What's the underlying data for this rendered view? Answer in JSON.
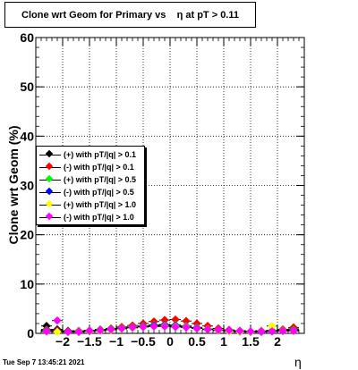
{
  "title": "Clone wrt Geom for Primary vs    η at pT > 0.11",
  "timestamp": "Tue Sep  7 13:45:21 2021",
  "chart_data": {
    "type": "scatter",
    "title": "Clone wrt Geom for Primary vs    η at pT > 0.11",
    "xlabel": "η",
    "ylabel": "Clone wrt Geom (%)",
    "xlim": [
      -2.5,
      2.5
    ],
    "ylim": [
      0,
      60
    ],
    "xticks": [
      "−2",
      "−1.5",
      "−1",
      "−0.5",
      "0",
      "0.5",
      "1",
      "1.5",
      "2"
    ],
    "yticks": [
      "0",
      "10",
      "20",
      "30",
      "40",
      "50",
      "60"
    ],
    "grid": true,
    "legend_position": "left-middle",
    "series": [
      {
        "name": "(+) with pT/|q| > 0.1",
        "color": "#000000",
        "x": [
          -2.3,
          -2.1,
          -1.9,
          -1.7,
          -1.5,
          -1.3,
          -1.1,
          -0.9,
          -0.7,
          -0.5,
          -0.3,
          -0.1,
          0.1,
          0.3,
          0.5,
          0.7,
          0.9,
          1.1,
          1.3,
          1.5,
          1.7,
          1.9,
          2.1,
          2.3
        ],
        "y": [
          1.5,
          0.8,
          0.5,
          0.4,
          0.5,
          0.6,
          0.8,
          1.0,
          1.2,
          1.4,
          1.6,
          1.8,
          1.6,
          1.4,
          1.0,
          0.8,
          0.6,
          0.5,
          0.4,
          0.3,
          0.4,
          0.5,
          0.7,
          0.9
        ]
      },
      {
        "name": "(-) with pT/|q| > 0.1",
        "color": "#ff0000",
        "x": [
          -2.3,
          -2.1,
          -1.9,
          -1.7,
          -1.5,
          -1.3,
          -1.1,
          -0.9,
          -0.7,
          -0.5,
          -0.3,
          -0.1,
          0.1,
          0.3,
          0.5,
          0.7,
          0.9,
          1.1,
          1.3,
          1.5,
          1.7,
          1.9,
          2.1,
          2.3
        ],
        "y": [
          0.8,
          0.6,
          0.4,
          0.5,
          0.6,
          0.8,
          1.0,
          1.3,
          1.6,
          2.0,
          2.4,
          2.7,
          2.8,
          2.5,
          2.0,
          1.5,
          1.0,
          0.7,
          0.5,
          0.4,
          0.5,
          0.6,
          0.8,
          1.2
        ]
      },
      {
        "name": "(+) with pT/|q| > 0.5",
        "color": "#00ff00",
        "x": [
          -2.3,
          -2.1,
          -1.9,
          -1.7,
          -1.5,
          -1.3,
          -1.1,
          -0.9,
          -0.7,
          -0.5,
          -0.3,
          -0.1,
          0.1,
          0.3,
          0.5,
          0.7,
          0.9,
          1.1,
          1.3,
          1.5,
          1.7,
          1.9,
          2.1,
          2.3
        ],
        "y": [
          0.6,
          0.4,
          0.3,
          0.4,
          0.5,
          0.7,
          0.9,
          1.1,
          1.3,
          1.5,
          1.7,
          1.8,
          1.7,
          1.5,
          1.2,
          0.9,
          0.7,
          0.5,
          0.4,
          0.3,
          0.4,
          0.5,
          0.6,
          0.7
        ]
      },
      {
        "name": "(-) with pT/|q| > 0.5",
        "color": "#0000ff",
        "x": [
          -2.3,
          -2.1,
          -1.9,
          -1.7,
          -1.5,
          -1.3,
          -1.1,
          -0.9,
          -0.7,
          -0.5,
          -0.3,
          -0.1,
          0.1,
          0.3,
          0.5,
          0.7,
          0.9,
          1.1,
          1.3,
          1.5,
          1.7,
          1.9,
          2.1,
          2.3
        ],
        "y": [
          0.5,
          0.4,
          0.3,
          0.3,
          0.4,
          0.6,
          0.8,
          1.0,
          1.2,
          1.4,
          1.6,
          1.7,
          1.6,
          1.4,
          1.1,
          0.8,
          0.6,
          0.4,
          0.3,
          0.3,
          0.3,
          0.4,
          0.5,
          0.6
        ]
      },
      {
        "name": "(+) with pT/|q| > 1.0",
        "color": "#ffff00",
        "x": [
          -2.3,
          -2.1,
          -1.9,
          -1.7,
          -1.5,
          -1.3,
          -1.1,
          -0.9,
          -0.7,
          -0.5,
          -0.3,
          -0.1,
          0.1,
          0.3,
          0.5,
          0.7,
          0.9,
          1.1,
          1.3,
          1.5,
          1.7,
          1.9,
          2.1,
          2.3
        ],
        "y": [
          0.4,
          0.3,
          0.3,
          0.3,
          0.4,
          0.5,
          0.7,
          0.9,
          1.1,
          1.3,
          1.4,
          1.5,
          1.4,
          1.3,
          1.0,
          0.8,
          0.6,
          0.4,
          0.3,
          0.3,
          0.4,
          1.5,
          0.5,
          0.5
        ]
      },
      {
        "name": "(-) with pT/|q| > 1.0",
        "color": "#ff00ff",
        "x": [
          -2.3,
          -2.1,
          -1.9,
          -1.7,
          -1.5,
          -1.3,
          -1.1,
          -0.9,
          -0.7,
          -0.5,
          -0.3,
          -0.1,
          0.1,
          0.3,
          0.5,
          0.7,
          0.9,
          1.1,
          1.3,
          1.5,
          1.7,
          1.9,
          2.1,
          2.3
        ],
        "y": [
          0.4,
          2.6,
          0.3,
          0.3,
          0.5,
          0.6,
          0.8,
          1.0,
          1.2,
          1.3,
          1.4,
          1.4,
          1.3,
          1.2,
          1.0,
          0.8,
          0.7,
          0.6,
          0.5,
          0.4,
          0.4,
          0.4,
          0.5,
          0.5
        ]
      }
    ]
  }
}
